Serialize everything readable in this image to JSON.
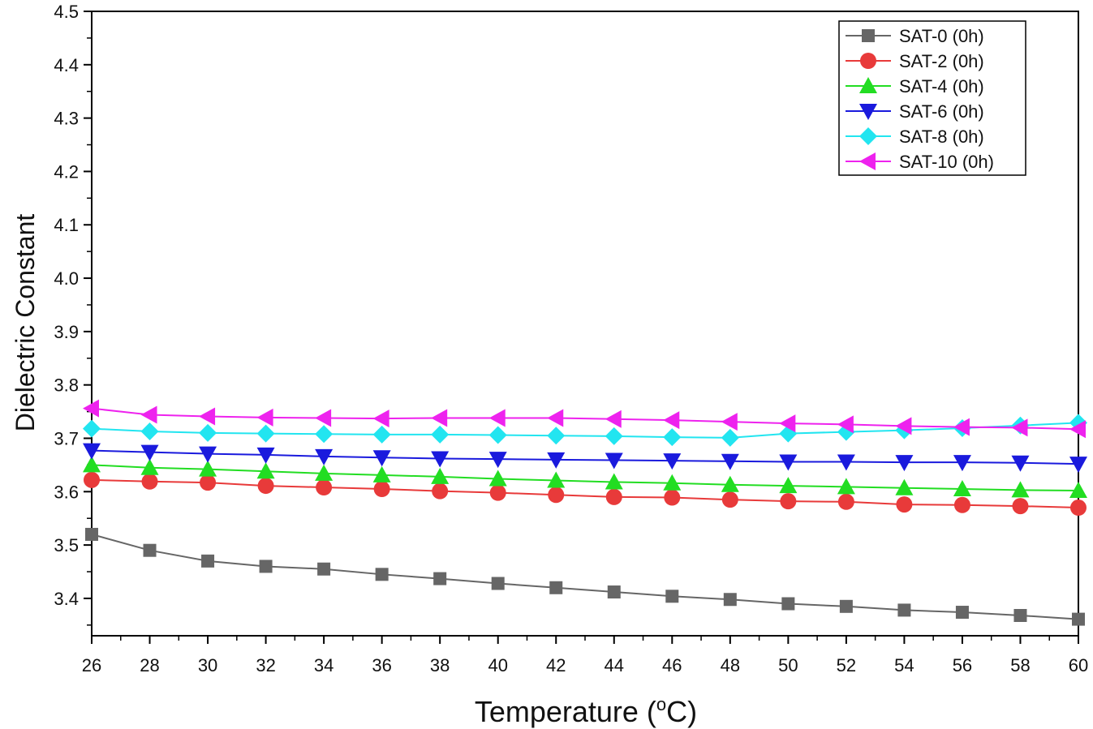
{
  "chart_data": {
    "type": "line",
    "title": "",
    "xlabel": "Temperature (",
    "xlabel_sup": "o",
    "xlabel_suffix": "C)",
    "ylabel": "Dielectric Constant",
    "xlim": [
      26,
      60
    ],
    "ylim": [
      3.33,
      4.5
    ],
    "xticks": [
      26,
      28,
      30,
      32,
      34,
      36,
      38,
      40,
      42,
      44,
      46,
      48,
      50,
      52,
      54,
      56,
      58,
      60
    ],
    "yticks": [
      3.4,
      3.5,
      3.6,
      3.7,
      3.8,
      3.9,
      4.0,
      4.1,
      4.2,
      4.3,
      4.4,
      4.5
    ],
    "ytick_labels": [
      "3.4",
      "3.5",
      "3.6",
      "3.7",
      "3.8",
      "3.9",
      "4.0",
      "4.1",
      "4.2",
      "4.3",
      "4.4",
      "4.5"
    ],
    "grid": false,
    "legend_position": "top-right",
    "x": [
      26,
      28,
      30,
      32,
      34,
      36,
      38,
      40,
      42,
      44,
      46,
      48,
      50,
      52,
      54,
      56,
      58,
      60
    ],
    "series": [
      {
        "name": "SAT-0 (0h)",
        "color": "#666666",
        "marker": "square",
        "values": [
          3.52,
          3.49,
          3.47,
          3.46,
          3.455,
          3.445,
          3.437,
          3.428,
          3.42,
          3.412,
          3.404,
          3.398,
          3.39,
          3.385,
          3.378,
          3.374,
          3.368,
          3.361
        ]
      },
      {
        "name": "SAT-2 (0h)",
        "color": "#e83a3a",
        "marker": "circle",
        "values": [
          3.622,
          3.619,
          3.617,
          3.611,
          3.608,
          3.605,
          3.601,
          3.598,
          3.594,
          3.59,
          3.589,
          3.585,
          3.582,
          3.581,
          3.576,
          3.575,
          3.573,
          3.57
        ]
      },
      {
        "name": "SAT-4 (0h)",
        "color": "#22dd22",
        "marker": "triangle-up",
        "values": [
          3.65,
          3.645,
          3.642,
          3.638,
          3.634,
          3.631,
          3.628,
          3.624,
          3.621,
          3.618,
          3.616,
          3.613,
          3.611,
          3.609,
          3.607,
          3.605,
          3.603,
          3.602
        ]
      },
      {
        "name": "SAT-6 (0h)",
        "color": "#1a1add",
        "marker": "triangle-down",
        "values": [
          3.677,
          3.674,
          3.671,
          3.669,
          3.666,
          3.664,
          3.662,
          3.661,
          3.66,
          3.659,
          3.658,
          3.657,
          3.656,
          3.656,
          3.655,
          3.655,
          3.654,
          3.652
        ]
      },
      {
        "name": "SAT-8 (0h)",
        "color": "#22e5f0",
        "marker": "diamond",
        "values": [
          3.718,
          3.713,
          3.71,
          3.709,
          3.708,
          3.707,
          3.707,
          3.706,
          3.705,
          3.704,
          3.702,
          3.701,
          3.709,
          3.712,
          3.715,
          3.719,
          3.724,
          3.729
        ]
      },
      {
        "name": "SAT-10 (0h)",
        "color": "#ee22ee",
        "marker": "triangle-left",
        "values": [
          3.756,
          3.744,
          3.741,
          3.739,
          3.738,
          3.737,
          3.738,
          3.738,
          3.738,
          3.736,
          3.734,
          3.731,
          3.728,
          3.726,
          3.723,
          3.721,
          3.72,
          3.717
        ]
      }
    ]
  }
}
